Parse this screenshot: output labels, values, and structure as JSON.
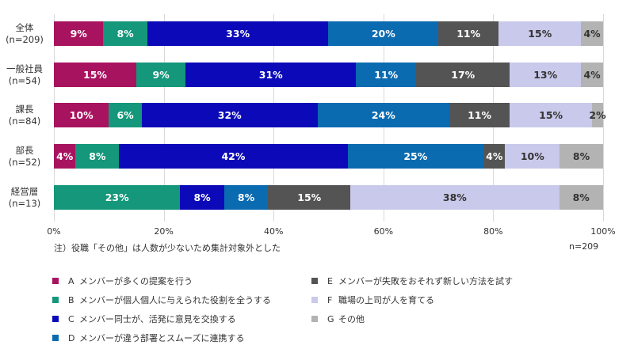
{
  "chart_data": {
    "type": "bar",
    "orientation": "horizontal",
    "stacked": "percent",
    "title": "",
    "xlabel": "",
    "ylabel": "",
    "xlim": [
      0,
      100
    ],
    "x_ticks": [
      "0%",
      "20%",
      "40%",
      "60%",
      "80%",
      "100%"
    ],
    "grid": true,
    "legend_position": "bottom",
    "categories": [
      {
        "name": "全体",
        "n": "(n=209)"
      },
      {
        "name": "一般社員",
        "n": "(n=54)"
      },
      {
        "name": "課長",
        "n": "(n=84)"
      },
      {
        "name": "部長",
        "n": "(n=52)"
      },
      {
        "name": "経営層",
        "n": "(n=13)"
      }
    ],
    "series": [
      {
        "key": "A",
        "name": "メンバーが多くの提案を行う",
        "color": "#a8135f",
        "text_color": "#ffffff",
        "values": [
          9,
          15,
          10,
          4,
          0
        ]
      },
      {
        "key": "B",
        "name": "メンバーが個人個人に与えられた役割を全うする",
        "color": "#14977a",
        "text_color": "#ffffff",
        "values": [
          8,
          9,
          6,
          8,
          23
        ]
      },
      {
        "key": "C",
        "name": "メンバー同士が、活発に意見を交換する",
        "color": "#0c0ab8",
        "text_color": "#ffffff",
        "values": [
          33,
          31,
          32,
          42,
          8
        ]
      },
      {
        "key": "D",
        "name": "メンバーが違う部署とスムーズに連携する",
        "color": "#0b6bb0",
        "text_color": "#ffffff",
        "values": [
          20,
          11,
          24,
          25,
          8
        ]
      },
      {
        "key": "E",
        "name": "メンバーが失敗をおそれず新しい方法を試す",
        "color": "#545454",
        "text_color": "#ffffff",
        "values": [
          11,
          17,
          11,
          4,
          15
        ]
      },
      {
        "key": "F",
        "name": "職場の上司が人を育てる",
        "color": "#c9c9eb",
        "text_color": "#333333",
        "values": [
          15,
          13,
          15,
          10,
          38
        ]
      },
      {
        "key": "G",
        "name": "その他",
        "color": "#b3b3b3",
        "text_color": "#333333",
        "values": [
          4,
          4,
          2,
          8,
          8
        ]
      }
    ],
    "annotations": {
      "note": "注）役職「その他」は人数が少ないため集計対象外とした",
      "total_n": "n=209"
    }
  }
}
